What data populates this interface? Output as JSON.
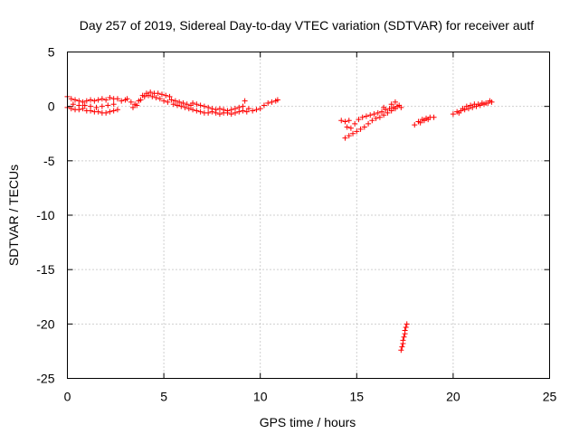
{
  "chart_data": {
    "type": "scatter",
    "title": "Day 257 of 2019, Sidereal Day-to-day VTEC variation (SDTVAR) for receiver autf",
    "xlabel": "GPS time / hours",
    "ylabel": "SDTVAR / TECUs",
    "xlim": [
      0,
      25
    ],
    "ylim": [
      -25,
      5
    ],
    "xticks": [
      0,
      5,
      10,
      15,
      20,
      25
    ],
    "yticks": [
      -25,
      -20,
      -15,
      -10,
      -5,
      0,
      5
    ],
    "grid": true,
    "marker": "plus",
    "color": "#ff0000",
    "series": [
      {
        "points": [
          [
            0.0,
            0.9
          ],
          [
            0.2,
            0.7
          ],
          [
            0.4,
            0.6
          ],
          [
            0.6,
            0.5
          ],
          [
            0.8,
            0.4
          ],
          [
            1.0,
            0.5
          ],
          [
            1.2,
            0.6
          ],
          [
            1.4,
            0.5
          ],
          [
            1.6,
            0.6
          ],
          [
            1.8,
            0.7
          ],
          [
            2.0,
            0.6
          ],
          [
            2.2,
            0.8
          ],
          [
            2.4,
            0.7
          ],
          [
            2.6,
            0.7
          ],
          [
            0.0,
            -0.1
          ],
          [
            0.2,
            -0.2
          ],
          [
            0.4,
            -0.3
          ],
          [
            0.6,
            -0.3
          ],
          [
            0.8,
            -0.2
          ],
          [
            1.0,
            -0.4
          ],
          [
            1.2,
            -0.4
          ],
          [
            1.4,
            -0.5
          ],
          [
            1.6,
            -0.5
          ],
          [
            1.8,
            -0.6
          ],
          [
            2.0,
            -0.6
          ],
          [
            2.2,
            -0.5
          ],
          [
            2.4,
            -0.4
          ],
          [
            2.6,
            -0.3
          ],
          [
            0.3,
            0.2
          ],
          [
            0.6,
            0.1
          ],
          [
            0.9,
            0.1
          ],
          [
            1.2,
            0.0
          ],
          [
            1.5,
            -0.1
          ],
          [
            1.8,
            0.0
          ],
          [
            2.1,
            0.1
          ],
          [
            2.4,
            0.2
          ],
          [
            2.8,
            0.5
          ],
          [
            3.0,
            0.6
          ],
          [
            3.1,
            0.7
          ],
          [
            3.3,
            0.4
          ],
          [
            3.5,
            0.2
          ],
          [
            3.7,
            0.5
          ],
          [
            3.9,
            1.0
          ],
          [
            4.1,
            1.2
          ],
          [
            4.3,
            1.3
          ],
          [
            4.5,
            1.2
          ],
          [
            4.7,
            1.2
          ],
          [
            4.9,
            1.1
          ],
          [
            5.1,
            1.0
          ],
          [
            5.3,
            0.9
          ],
          [
            3.4,
            -0.1
          ],
          [
            3.6,
            0.1
          ],
          [
            3.8,
            0.6
          ],
          [
            4.0,
            0.9
          ],
          [
            4.2,
            1.0
          ],
          [
            4.4,
            0.9
          ],
          [
            4.6,
            0.8
          ],
          [
            4.8,
            0.7
          ],
          [
            5.0,
            0.5
          ],
          [
            5.2,
            0.4
          ],
          [
            5.4,
            0.6
          ],
          [
            5.6,
            0.5
          ],
          [
            5.8,
            0.4
          ],
          [
            6.0,
            0.3
          ],
          [
            6.2,
            0.2
          ],
          [
            6.4,
            0.1
          ],
          [
            5.5,
            0.2
          ],
          [
            5.7,
            0.1
          ],
          [
            5.9,
            0.0
          ],
          [
            6.1,
            -0.1
          ],
          [
            6.3,
            -0.2
          ],
          [
            6.5,
            -0.3
          ],
          [
            6.7,
            -0.4
          ],
          [
            6.5,
            0.3
          ],
          [
            6.7,
            0.2
          ],
          [
            6.9,
            0.1
          ],
          [
            7.1,
            0.0
          ],
          [
            7.3,
            -0.1
          ],
          [
            7.5,
            -0.2
          ],
          [
            7.7,
            -0.3
          ],
          [
            6.9,
            -0.5
          ],
          [
            7.1,
            -0.6
          ],
          [
            7.3,
            -0.6
          ],
          [
            7.5,
            -0.5
          ],
          [
            7.7,
            -0.6
          ],
          [
            7.9,
            -0.7
          ],
          [
            8.1,
            -0.6
          ],
          [
            7.9,
            -0.2
          ],
          [
            8.1,
            -0.3
          ],
          [
            8.3,
            -0.4
          ],
          [
            8.5,
            -0.3
          ],
          [
            8.7,
            -0.2
          ],
          [
            8.9,
            -0.1
          ],
          [
            9.1,
            0.0
          ],
          [
            8.3,
            -0.6
          ],
          [
            8.5,
            -0.7
          ],
          [
            8.7,
            -0.6
          ],
          [
            8.9,
            -0.5
          ],
          [
            9.1,
            -0.4
          ],
          [
            9.3,
            -0.5
          ],
          [
            9.2,
            0.5
          ],
          [
            9.4,
            -0.2
          ],
          [
            9.6,
            -0.4
          ],
          [
            9.8,
            -0.3
          ],
          [
            10.0,
            -0.2
          ],
          [
            10.2,
            0.1
          ],
          [
            10.4,
            0.3
          ],
          [
            10.6,
            0.4
          ],
          [
            10.8,
            0.5
          ],
          [
            10.9,
            0.6
          ]
        ]
      },
      {
        "points": [
          [
            14.2,
            -1.3
          ],
          [
            14.4,
            -1.4
          ],
          [
            14.6,
            -1.3
          ],
          [
            14.5,
            -1.9
          ],
          [
            14.7,
            -2.0
          ],
          [
            14.9,
            -1.6
          ],
          [
            15.1,
            -1.2
          ],
          [
            15.3,
            -1.0
          ],
          [
            15.5,
            -0.9
          ],
          [
            15.7,
            -0.8
          ],
          [
            15.9,
            -0.7
          ],
          [
            16.1,
            -0.6
          ],
          [
            16.3,
            -0.5
          ],
          [
            16.5,
            -0.3
          ],
          [
            16.7,
            -0.2
          ],
          [
            16.9,
            -0.1
          ],
          [
            17.1,
            0.0
          ],
          [
            17.3,
            -0.1
          ],
          [
            14.4,
            -2.9
          ],
          [
            14.6,
            -2.7
          ],
          [
            14.8,
            -2.5
          ],
          [
            15.0,
            -2.3
          ],
          [
            15.2,
            -2.1
          ],
          [
            15.4,
            -1.9
          ],
          [
            15.6,
            -1.6
          ],
          [
            15.8,
            -1.3
          ],
          [
            16.0,
            -1.1
          ],
          [
            16.2,
            -1.0
          ],
          [
            16.4,
            -0.8
          ],
          [
            16.6,
            -0.6
          ],
          [
            16.8,
            -0.4
          ],
          [
            17.0,
            -0.2
          ],
          [
            17.2,
            0.1
          ],
          [
            17.0,
            0.4
          ],
          [
            16.8,
            0.2
          ],
          [
            16.4,
            -0.1
          ],
          [
            17.6,
            -20.0
          ],
          [
            17.55,
            -20.3
          ],
          [
            17.5,
            -20.6
          ],
          [
            17.5,
            -20.9
          ],
          [
            17.45,
            -21.2
          ],
          [
            17.4,
            -21.5
          ],
          [
            17.4,
            -21.8
          ],
          [
            17.35,
            -22.1
          ],
          [
            17.3,
            -22.4
          ],
          [
            18.0,
            -1.7
          ],
          [
            18.2,
            -1.4
          ],
          [
            18.4,
            -1.2
          ],
          [
            18.6,
            -1.1
          ],
          [
            18.8,
            -1.0
          ],
          [
            19.0,
            -1.0
          ],
          [
            18.3,
            -1.5
          ],
          [
            18.5,
            -1.3
          ],
          [
            18.7,
            -1.2
          ],
          [
            20.0,
            -0.7
          ],
          [
            20.2,
            -0.5
          ],
          [
            20.4,
            -0.4
          ],
          [
            20.6,
            -0.3
          ],
          [
            20.8,
            -0.2
          ],
          [
            21.0,
            -0.1
          ],
          [
            21.2,
            0.0
          ],
          [
            21.4,
            0.1
          ],
          [
            21.6,
            0.2
          ],
          [
            21.8,
            0.3
          ],
          [
            22.0,
            0.4
          ],
          [
            20.3,
            -0.6
          ],
          [
            20.5,
            -0.2
          ],
          [
            20.7,
            0.0
          ],
          [
            20.9,
            0.1
          ],
          [
            21.1,
            0.2
          ],
          [
            21.3,
            0.2
          ],
          [
            21.5,
            0.3
          ],
          [
            21.7,
            0.3
          ],
          [
            21.9,
            0.5
          ]
        ]
      }
    ]
  }
}
